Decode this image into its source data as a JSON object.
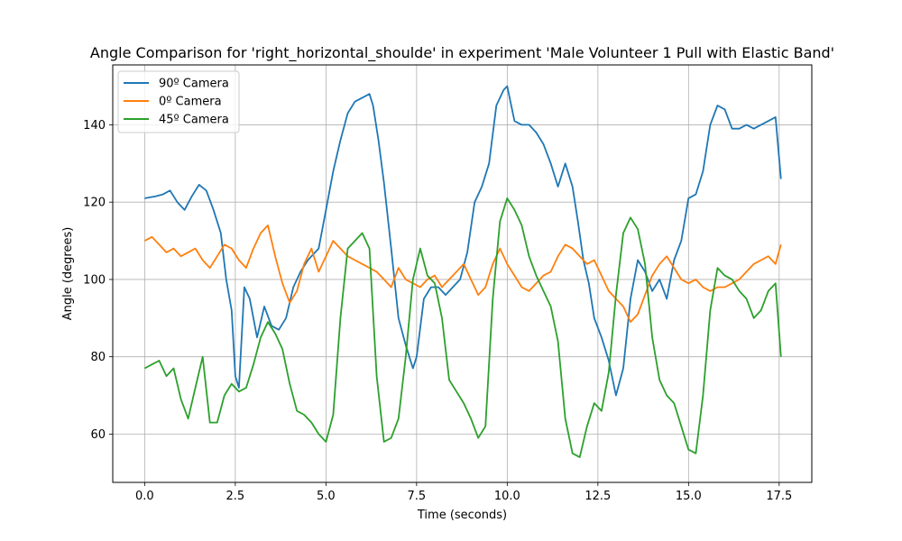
{
  "chart_data": {
    "type": "line",
    "title": "Angle Comparison for 'right_horizontal_shoulde' in experiment 'Male Volunteer 1 Pull with Elastic Band'",
    "xlabel": "Time (seconds)",
    "ylabel": "Angle (degrees)",
    "xlim": [
      -0.88,
      18.4
    ],
    "ylim": [
      47.5,
      155.5
    ],
    "xticks": [
      0.0,
      2.5,
      5.0,
      7.5,
      10.0,
      12.5,
      15.0,
      17.5
    ],
    "xtick_labels": [
      "0.0",
      "2.5",
      "5.0",
      "7.5",
      "10.0",
      "12.5",
      "15.0",
      "17.5"
    ],
    "yticks": [
      60,
      80,
      100,
      120,
      140
    ],
    "ytick_labels": [
      "60",
      "80",
      "100",
      "120",
      "140"
    ],
    "grid": true,
    "legend_position": "upper-left",
    "series": [
      {
        "name": "90º Camera",
        "color": "#1f77b4",
        "x": [
          0,
          0.3,
          0.5,
          0.7,
          0.9,
          1.1,
          1.3,
          1.5,
          1.7,
          1.9,
          2.1,
          2.25,
          2.4,
          2.5,
          2.6,
          2.75,
          2.9,
          3.1,
          3.3,
          3.5,
          3.7,
          3.9,
          4.1,
          4.3,
          4.5,
          4.8,
          5.0,
          5.2,
          5.4,
          5.6,
          5.8,
          6.0,
          6.2,
          6.3,
          6.45,
          6.6,
          6.8,
          7.0,
          7.2,
          7.4,
          7.5,
          7.7,
          7.9,
          8.1,
          8.3,
          8.5,
          8.7,
          8.9,
          9.1,
          9.3,
          9.5,
          9.7,
          9.9,
          10.0,
          10.2,
          10.4,
          10.6,
          10.8,
          11.0,
          11.2,
          11.4,
          11.6,
          11.8,
          11.95,
          12.1,
          12.25,
          12.4,
          12.6,
          12.8,
          13.0,
          13.2,
          13.4,
          13.6,
          13.8,
          14.0,
          14.2,
          14.4,
          14.6,
          14.8,
          15.0,
          15.2,
          15.4,
          15.6,
          15.8,
          16.0,
          16.2,
          16.4,
          16.6,
          16.8,
          17.0,
          17.2,
          17.4,
          17.55
        ],
        "y": [
          121,
          121.5,
          122,
          123,
          120,
          118,
          121.5,
          124.5,
          123,
          118,
          112,
          100,
          92,
          75,
          72,
          98,
          95,
          85,
          93,
          88,
          87,
          90,
          98,
          102,
          105,
          108,
          118,
          128,
          136,
          143,
          146,
          147,
          148,
          145,
          136,
          125,
          108,
          90,
          83,
          77,
          80,
          95,
          98,
          98,
          96,
          98,
          100,
          107,
          120,
          124,
          130,
          145,
          149,
          150,
          141,
          140,
          140,
          138,
          135,
          130,
          124,
          130,
          124,
          115,
          105,
          99,
          90,
          85,
          79,
          70,
          77,
          95,
          105,
          102,
          97,
          100,
          95,
          105,
          110,
          121,
          122,
          128,
          140,
          145,
          144,
          139,
          139,
          140,
          139,
          140,
          141,
          142,
          126
        ]
      },
      {
        "name": "0º Camera",
        "color": "#ff7f0e",
        "x": [
          0,
          0.2,
          0.4,
          0.6,
          0.8,
          1.0,
          1.2,
          1.4,
          1.6,
          1.8,
          2.0,
          2.2,
          2.4,
          2.6,
          2.8,
          3.0,
          3.2,
          3.4,
          3.6,
          3.8,
          4.0,
          4.2,
          4.4,
          4.6,
          4.8,
          5.0,
          5.2,
          5.4,
          5.6,
          5.8,
          6.0,
          6.2,
          6.4,
          6.6,
          6.8,
          7.0,
          7.2,
          7.4,
          7.6,
          7.8,
          8.0,
          8.2,
          8.4,
          8.6,
          8.8,
          9.0,
          9.2,
          9.4,
          9.6,
          9.8,
          10.0,
          10.2,
          10.4,
          10.6,
          10.8,
          11.0,
          11.2,
          11.4,
          11.6,
          11.8,
          12.0,
          12.2,
          12.4,
          12.6,
          12.8,
          13.0,
          13.2,
          13.4,
          13.6,
          13.8,
          14.0,
          14.2,
          14.4,
          14.6,
          14.8,
          15.0,
          15.2,
          15.4,
          15.6,
          15.8,
          16.0,
          16.2,
          16.4,
          16.6,
          16.8,
          17.0,
          17.2,
          17.4,
          17.55
        ],
        "y": [
          110,
          111,
          109,
          107,
          108,
          106,
          107,
          108,
          105,
          103,
          106,
          109,
          108,
          105,
          103,
          108,
          112,
          114,
          106,
          99,
          94,
          97,
          104,
          108,
          102,
          106,
          110,
          108,
          106,
          105,
          104,
          103,
          102,
          100,
          98,
          103,
          100,
          99,
          98,
          100,
          101,
          98,
          100,
          102,
          104,
          100,
          96,
          98,
          104,
          108,
          104,
          101,
          98,
          97,
          99,
          101,
          102,
          106,
          109,
          108,
          106,
          104,
          105,
          101,
          97,
          95,
          93,
          89,
          91,
          96,
          101,
          104,
          106,
          103,
          100,
          99,
          100,
          98,
          97,
          98,
          98,
          99,
          100,
          102,
          104,
          105,
          106,
          104,
          109
        ]
      },
      {
        "name": "45º Camera",
        "color": "#2ca02c",
        "x": [
          0,
          0.2,
          0.4,
          0.6,
          0.8,
          1.0,
          1.2,
          1.4,
          1.6,
          1.8,
          2.0,
          2.2,
          2.4,
          2.6,
          2.8,
          3.0,
          3.2,
          3.4,
          3.6,
          3.8,
          4.0,
          4.2,
          4.4,
          4.6,
          4.8,
          5.0,
          5.2,
          5.4,
          5.6,
          5.8,
          6.0,
          6.2,
          6.4,
          6.6,
          6.8,
          7.0,
          7.2,
          7.4,
          7.6,
          7.8,
          8.0,
          8.2,
          8.4,
          8.6,
          8.8,
          9.0,
          9.2,
          9.4,
          9.6,
          9.8,
          10.0,
          10.2,
          10.4,
          10.6,
          10.8,
          11.0,
          11.2,
          11.4,
          11.6,
          11.8,
          12.0,
          12.2,
          12.4,
          12.6,
          12.8,
          13.0,
          13.2,
          13.4,
          13.6,
          13.8,
          14.0,
          14.2,
          14.4,
          14.6,
          14.8,
          15.0,
          15.2,
          15.4,
          15.6,
          15.8,
          16.0,
          16.2,
          16.4,
          16.6,
          16.8,
          17.0,
          17.2,
          17.4,
          17.55
        ],
        "y": [
          77,
          78,
          79,
          75,
          77,
          69,
          64,
          72,
          80,
          63,
          63,
          70,
          73,
          71,
          72,
          78,
          85,
          89,
          86,
          82,
          73,
          66,
          65,
          63,
          60,
          58,
          65,
          90,
          108,
          110,
          112,
          108,
          75,
          58,
          59,
          64,
          80,
          100,
          108,
          101,
          99,
          90,
          74,
          71,
          68,
          64,
          59,
          62,
          95,
          115,
          121,
          118,
          114,
          106,
          101,
          97,
          93,
          84,
          64,
          55,
          54,
          62,
          68,
          66,
          76,
          96,
          112,
          116,
          113,
          104,
          85,
          74,
          70,
          68,
          62,
          56,
          55,
          70,
          92,
          103,
          101,
          100,
          97,
          95,
          90,
          92,
          97,
          99,
          80
        ]
      }
    ]
  }
}
